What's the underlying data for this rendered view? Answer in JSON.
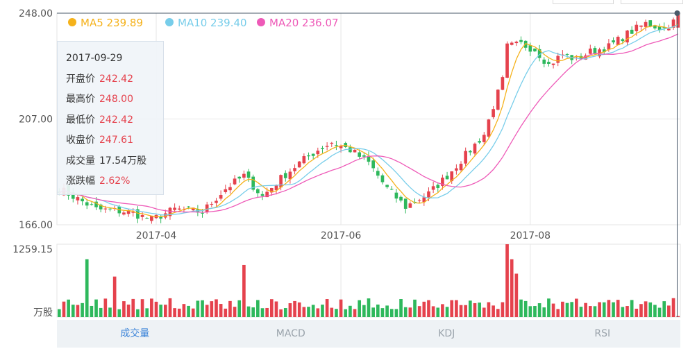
{
  "legend": [
    {
      "label": "MA5 239.89",
      "color": "#f5b21b"
    },
    {
      "label": "MA10 239.40",
      "color": "#77cdea"
    },
    {
      "label": "MA20 236.07",
      "color": "#ee5ab8"
    }
  ],
  "tooltip": {
    "date": "2017-09-29",
    "rows": [
      {
        "label": "开盘价",
        "value": "242.42"
      },
      {
        "label": "最高价",
        "value": "248.00"
      },
      {
        "label": "最低价",
        "value": "242.42"
      },
      {
        "label": "收盘价",
        "value": "247.61"
      },
      {
        "label": "成交量",
        "value": "17.54万股"
      },
      {
        "label": "涨跌幅",
        "value": "2.62%"
      }
    ]
  },
  "tabs": [
    {
      "label": "成交量",
      "active": true
    },
    {
      "label": "MACD",
      "active": false
    },
    {
      "label": "KDJ",
      "active": false
    },
    {
      "label": "RSI",
      "active": false
    }
  ],
  "chart_data": {
    "type": "candlestick",
    "price_axis": {
      "ticks": [
        "248.00",
        "207.00",
        "166.00"
      ],
      "range": [
        166.0,
        248.0
      ]
    },
    "volume_axis": {
      "ticks": [
        "1259.15",
        "万股"
      ],
      "range": [
        0,
        1259.15
      ]
    },
    "x_ticks": [
      "2017-04",
      "2017-06",
      "2017-08"
    ],
    "colors": {
      "up": "#e5424d",
      "down": "#2eb85c"
    },
    "price_anchors": [
      {
        "x": 0,
        "y": 180
      },
      {
        "x": 8,
        "y": 172
      },
      {
        "x": 15,
        "y": 171
      },
      {
        "x": 20,
        "y": 168
      },
      {
        "x": 25,
        "y": 172
      },
      {
        "x": 31,
        "y": 171
      },
      {
        "x": 36,
        "y": 180
      },
      {
        "x": 40,
        "y": 185
      },
      {
        "x": 44,
        "y": 177
      },
      {
        "x": 48,
        "y": 184
      },
      {
        "x": 52,
        "y": 190
      },
      {
        "x": 56,
        "y": 195
      },
      {
        "x": 59,
        "y": 198
      },
      {
        "x": 63,
        "y": 195
      },
      {
        "x": 67,
        "y": 190
      },
      {
        "x": 71,
        "y": 180
      },
      {
        "x": 75,
        "y": 173
      },
      {
        "x": 80,
        "y": 178
      },
      {
        "x": 84,
        "y": 185
      },
      {
        "x": 88,
        "y": 193
      },
      {
        "x": 92,
        "y": 201
      },
      {
        "x": 94,
        "y": 212
      },
      {
        "x": 96,
        "y": 222
      },
      {
        "x": 97,
        "y": 235
      },
      {
        "x": 100,
        "y": 236
      },
      {
        "x": 103,
        "y": 234
      },
      {
        "x": 106,
        "y": 228
      },
      {
        "x": 109,
        "y": 232
      },
      {
        "x": 112,
        "y": 230
      },
      {
        "x": 115,
        "y": 233
      },
      {
        "x": 119,
        "y": 235
      },
      {
        "x": 123,
        "y": 240
      },
      {
        "x": 127,
        "y": 244
      },
      {
        "x": 131,
        "y": 242
      },
      {
        "x": 134,
        "y": 246
      }
    ],
    "volume_spikes": [
      {
        "x": 6,
        "v": 1000
      },
      {
        "x": 12,
        "v": 700
      },
      {
        "x": 40,
        "v": 900
      },
      {
        "x": 97,
        "v": 1259.15
      },
      {
        "x": 98,
        "v": 1000
      },
      {
        "x": 99,
        "v": 750
      }
    ],
    "last_volume": 17.54
  }
}
